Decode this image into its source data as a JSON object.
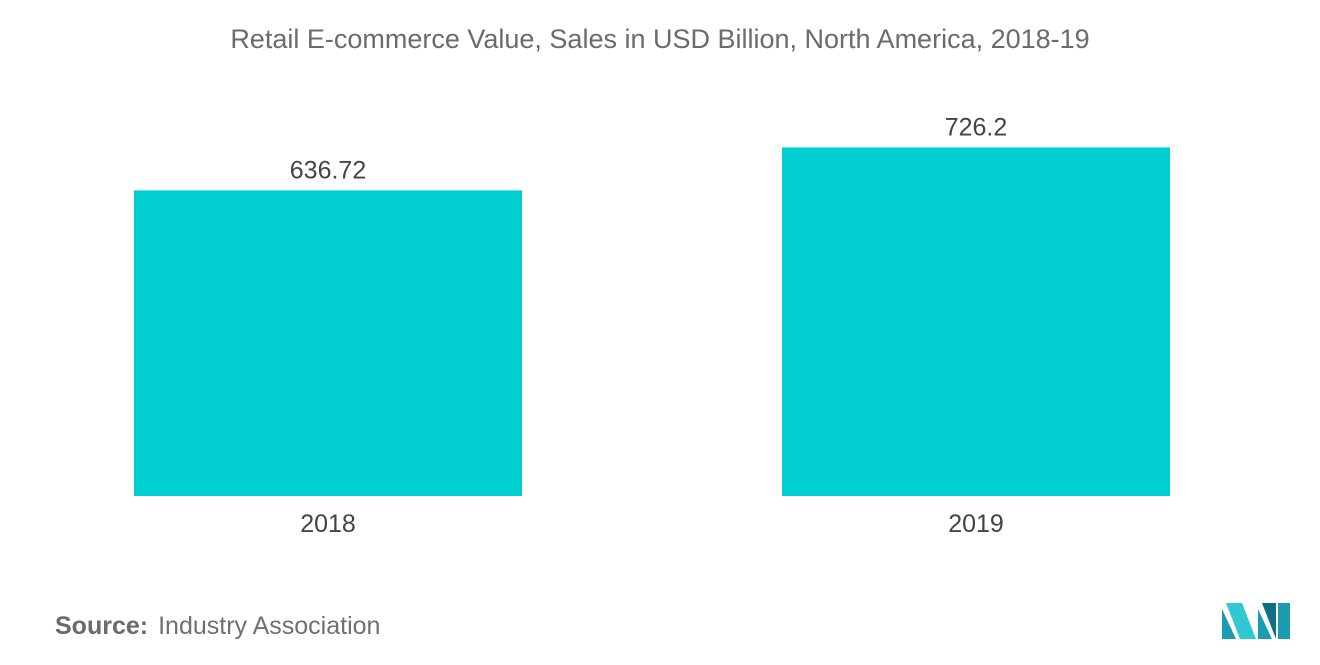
{
  "chart_data": {
    "type": "bar",
    "title": "Retail E-commerce Value, Sales in USD Billion, North America, 2018-19",
    "categories": [
      "2018",
      "2019"
    ],
    "values": [
      636.72,
      726.2
    ],
    "value_labels": [
      "636.72",
      "726.2"
    ],
    "xlabel": "",
    "ylabel": "",
    "ylim": [
      0,
      800
    ],
    "grid": false,
    "legend": "none",
    "bar_color": "#00CED1"
  },
  "source": {
    "label": "Source:",
    "value": "Industry Association"
  },
  "logo": {
    "icon": "mordor-intelligence-logo-icon",
    "colors": [
      "#1a9bb0",
      "#2fc8d3",
      "#0f6f86"
    ]
  }
}
